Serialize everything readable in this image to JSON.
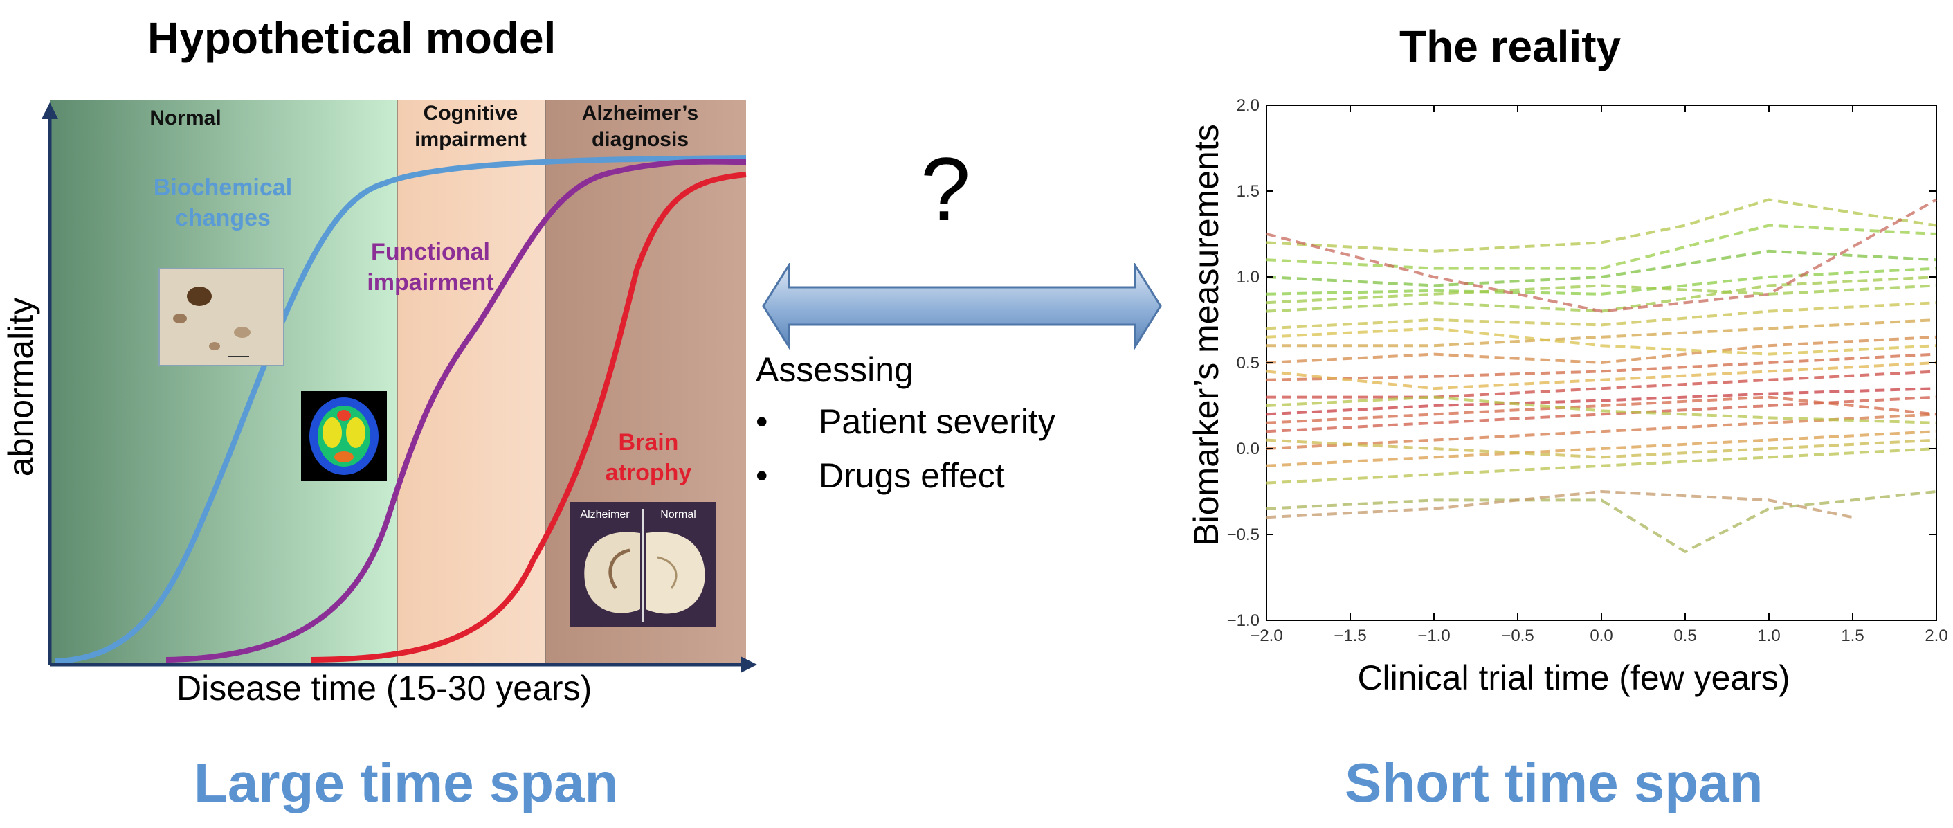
{
  "left_panel": {
    "title": "Hypothetical model",
    "footer": "Large time span",
    "ylabel": "abnormality",
    "xlabel": "Disease time (15-30 years)",
    "phases": [
      {
        "name": "normal",
        "label": "Normal",
        "color": "#5f8c6e"
      },
      {
        "name": "cognitive",
        "label": "Cognitive impairment",
        "color": "#f6d4b8"
      },
      {
        "name": "alzheimers",
        "label": "Alzheimer’s diagnosis",
        "color": "#c6a08e"
      }
    ],
    "curves": [
      {
        "name": "biochemical",
        "label": "Biochemical changes",
        "color": "#5b9bd5"
      },
      {
        "name": "functional",
        "label": "Functional impairment",
        "color": "#8b2f96"
      },
      {
        "name": "atrophy",
        "label": "Brain atrophy",
        "color": "#e0202f"
      }
    ],
    "figures": [
      {
        "name": "histology-image"
      },
      {
        "name": "brain-scan-image"
      },
      {
        "name": "brain-slice-image",
        "labels": [
          "Alzheimer",
          "Normal"
        ]
      }
    ]
  },
  "middle": {
    "question": "?",
    "heading": "Assessing",
    "bullets": [
      "Patient severity",
      "Drugs effect"
    ],
    "bullet_char": "•"
  },
  "right_panel": {
    "title": "The reality",
    "footer": "Short time span"
  },
  "chart_data": {
    "type": "line",
    "title": "",
    "xlabel": "Clinical trial time (few years)",
    "ylabel": "Biomarker’s measurements",
    "xlim": [
      -2.0,
      2.0
    ],
    "ylim": [
      -1.0,
      2.0
    ],
    "xticks": [
      "−2.0",
      "−1.5",
      "−1.0",
      "−0.5",
      "0.0",
      "0.5",
      "1.0",
      "1.5",
      "2.0"
    ],
    "yticks": [
      "−1.0",
      "−0.5",
      "0.0",
      "0.5",
      "1.0",
      "1.5",
      "2.0"
    ],
    "line_style": "dashed",
    "series": [
      {
        "color": "#7fc241",
        "values": [
          [
            -2.0,
            1.0
          ],
          [
            -1.0,
            0.95
          ],
          [
            0.0,
            1.0
          ],
          [
            1.0,
            1.15
          ],
          [
            2.0,
            1.1
          ]
        ]
      },
      {
        "color": "#8ccc44",
        "values": [
          [
            -2.0,
            0.9
          ],
          [
            -1.0,
            0.92
          ],
          [
            0.0,
            0.9
          ],
          [
            1.0,
            1.0
          ],
          [
            2.0,
            1.05
          ]
        ]
      },
      {
        "color": "#9acd46",
        "values": [
          [
            -2.0,
            1.1
          ],
          [
            -1.0,
            1.05
          ],
          [
            0.0,
            1.05
          ],
          [
            1.0,
            1.3
          ],
          [
            2.0,
            1.25
          ]
        ]
      },
      {
        "color": "#a2c84a",
        "values": [
          [
            -2.0,
            0.8
          ],
          [
            -1.0,
            0.85
          ],
          [
            0.0,
            0.8
          ],
          [
            1.0,
            0.95
          ],
          [
            2.0,
            1.0
          ]
        ]
      },
      {
        "color": "#b3c64a",
        "values": [
          [
            -2.0,
            1.2
          ],
          [
            -1.0,
            1.15
          ],
          [
            0.0,
            1.2
          ],
          [
            0.5,
            1.3
          ],
          [
            1.0,
            1.45
          ],
          [
            2.0,
            1.3
          ]
        ]
      },
      {
        "color": "#c9c24c",
        "values": [
          [
            -2.0,
            0.7
          ],
          [
            -1.0,
            0.75
          ],
          [
            0.0,
            0.72
          ],
          [
            1.0,
            0.8
          ],
          [
            2.0,
            0.85
          ]
        ]
      },
      {
        "color": "#d3a64a",
        "values": [
          [
            -2.0,
            0.6
          ],
          [
            -1.0,
            0.6
          ],
          [
            0.0,
            0.65
          ],
          [
            1.0,
            0.7
          ],
          [
            2.0,
            0.75
          ]
        ]
      },
      {
        "color": "#d68a48",
        "values": [
          [
            -2.0,
            0.5
          ],
          [
            -1.0,
            0.55
          ],
          [
            0.0,
            0.5
          ],
          [
            1.0,
            0.6
          ],
          [
            2.0,
            0.65
          ]
        ]
      },
      {
        "color": "#d26a46",
        "values": [
          [
            -2.0,
            0.4
          ],
          [
            -1.0,
            0.42
          ],
          [
            0.0,
            0.45
          ],
          [
            1.0,
            0.5
          ],
          [
            2.0,
            0.55
          ]
        ]
      },
      {
        "color": "#cc4a44",
        "values": [
          [
            -2.0,
            0.3
          ],
          [
            -1.0,
            0.3
          ],
          [
            0.0,
            0.35
          ],
          [
            1.0,
            0.4
          ],
          [
            2.0,
            0.45
          ]
        ]
      },
      {
        "color": "#c83c42",
        "values": [
          [
            -2.0,
            0.2
          ],
          [
            -1.0,
            0.25
          ],
          [
            0.0,
            0.28
          ],
          [
            1.0,
            0.32
          ],
          [
            2.0,
            0.35
          ]
        ]
      },
      {
        "color": "#cf5a45",
        "values": [
          [
            -2.0,
            0.1
          ],
          [
            -1.0,
            0.15
          ],
          [
            0.0,
            0.2
          ],
          [
            1.0,
            0.25
          ],
          [
            2.0,
            0.3
          ]
        ]
      },
      {
        "color": "#d47a47",
        "values": [
          [
            -2.0,
            0.0
          ],
          [
            -1.0,
            0.05
          ],
          [
            0.0,
            0.1
          ],
          [
            1.0,
            0.15
          ],
          [
            2.0,
            0.2
          ]
        ]
      },
      {
        "color": "#d99c49",
        "values": [
          [
            -2.0,
            -0.1
          ],
          [
            -1.0,
            -0.05
          ],
          [
            0.0,
            0.0
          ],
          [
            1.0,
            0.05
          ],
          [
            2.0,
            0.1
          ]
        ]
      },
      {
        "color": "#c9b84b",
        "values": [
          [
            -2.0,
            0.05
          ],
          [
            -1.0,
            0.0
          ],
          [
            0.0,
            -0.05
          ],
          [
            1.0,
            0.0
          ],
          [
            2.0,
            0.05
          ]
        ]
      },
      {
        "color": "#b8c24c",
        "values": [
          [
            -2.0,
            -0.2
          ],
          [
            -1.0,
            -0.15
          ],
          [
            0.0,
            -0.1
          ],
          [
            1.0,
            -0.05
          ],
          [
            2.0,
            0.0
          ]
        ]
      },
      {
        "color": "#a9b45a",
        "values": [
          [
            -2.0,
            -0.35
          ],
          [
            -1.0,
            -0.3
          ],
          [
            0.0,
            -0.3
          ],
          [
            0.5,
            -0.6
          ],
          [
            1.0,
            -0.35
          ],
          [
            2.0,
            -0.25
          ]
        ]
      },
      {
        "color": "#c49a6a",
        "values": [
          [
            -2.0,
            -0.4
          ],
          [
            -1.0,
            -0.35
          ],
          [
            0.0,
            -0.25
          ],
          [
            1.0,
            -0.3
          ],
          [
            1.5,
            -0.4
          ]
        ]
      },
      {
        "color": "#c86a5c",
        "values": [
          [
            -2.0,
            1.25
          ],
          [
            -1.0,
            1.0
          ],
          [
            0.0,
            0.8
          ],
          [
            1.0,
            0.9
          ],
          [
            2.0,
            1.45
          ]
        ]
      },
      {
        "color": "#d9c14c",
        "values": [
          [
            -2.0,
            0.65
          ],
          [
            -1.0,
            0.7
          ],
          [
            0.0,
            0.6
          ],
          [
            1.0,
            0.55
          ],
          [
            2.0,
            0.6
          ]
        ]
      },
      {
        "color": "#9fc848",
        "values": [
          [
            -2.0,
            0.85
          ],
          [
            -1.0,
            0.9
          ],
          [
            0.0,
            0.95
          ],
          [
            1.0,
            0.9
          ],
          [
            2.0,
            0.95
          ]
        ]
      },
      {
        "color": "#d46848",
        "values": [
          [
            -2.0,
            0.15
          ],
          [
            -1.0,
            0.2
          ],
          [
            0.0,
            0.25
          ],
          [
            1.0,
            0.3
          ],
          [
            2.0,
            0.2
          ]
        ]
      },
      {
        "color": "#e0b44c",
        "values": [
          [
            -2.0,
            0.45
          ],
          [
            -1.0,
            0.35
          ],
          [
            0.0,
            0.4
          ],
          [
            1.0,
            0.45
          ],
          [
            2.0,
            0.5
          ]
        ]
      },
      {
        "color": "#b5c34a",
        "values": [
          [
            -2.0,
            0.25
          ],
          [
            -1.0,
            0.3
          ],
          [
            0.0,
            0.22
          ],
          [
            1.0,
            0.18
          ],
          [
            2.0,
            0.15
          ]
        ]
      }
    ]
  }
}
